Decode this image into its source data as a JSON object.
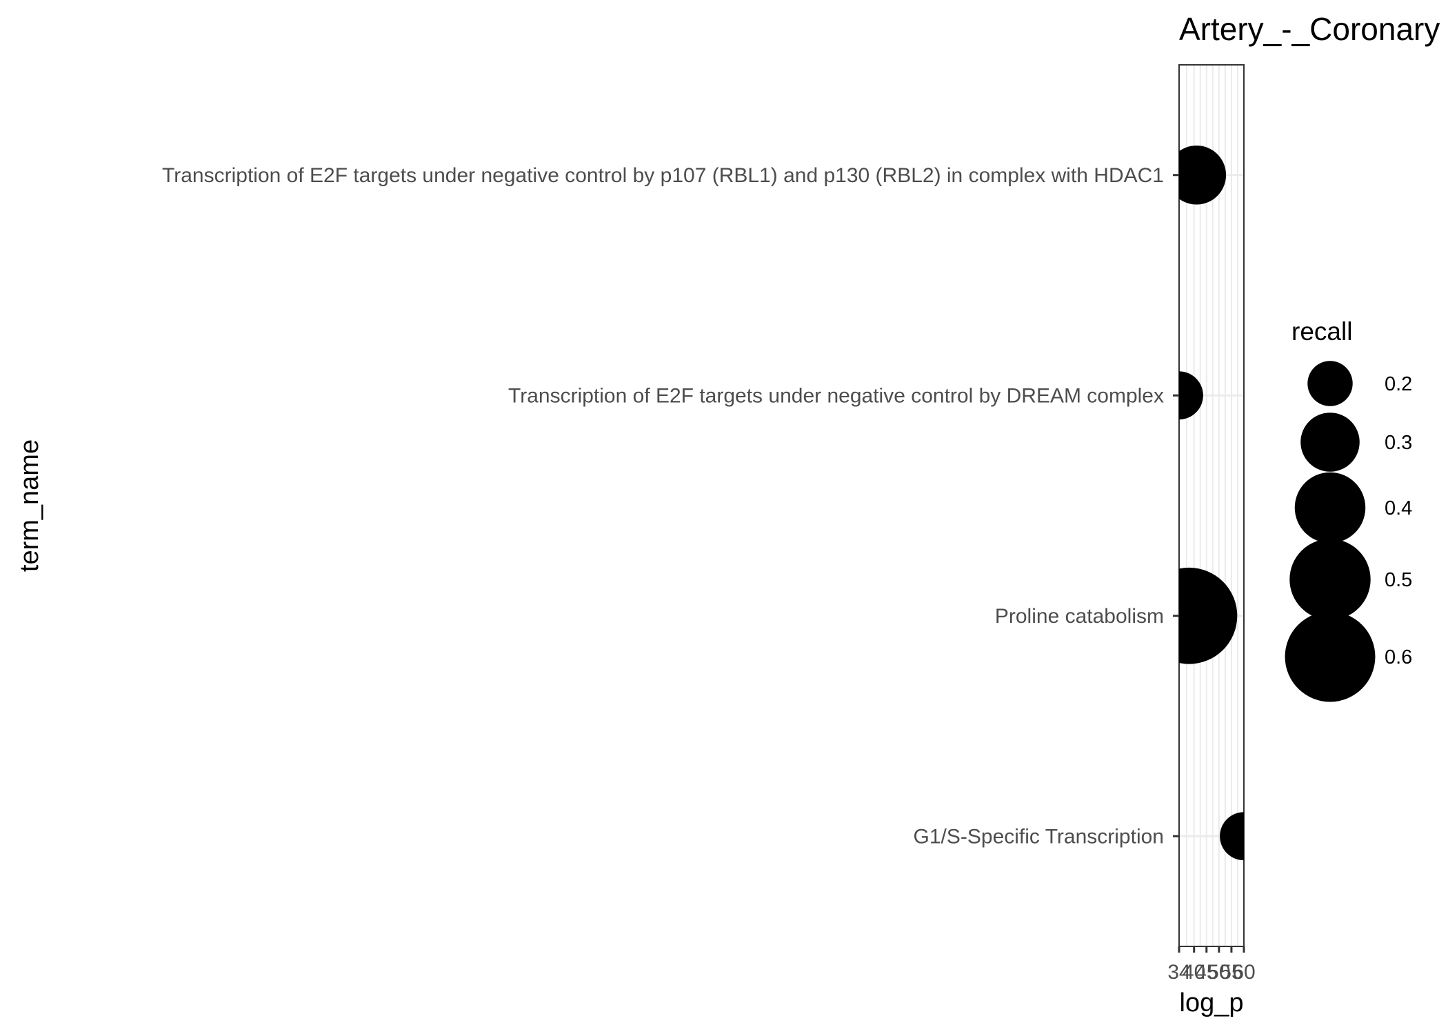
{
  "chart_data": {
    "type": "scatter",
    "title": "Artery_-_Coronary",
    "xlabel": "log_p",
    "ylabel": "term_name",
    "x_ticks": [
      "34",
      "40",
      "45",
      "50",
      "55",
      "60"
    ],
    "x_tick_values": [
      34,
      40,
      45,
      50,
      55,
      60
    ],
    "xlim": [
      34,
      60
    ],
    "categories": [
      "Transcription of E2F targets under negative control by p107 (RBL1) and p130 (RBL2) in complex with HDAC1",
      "Transcription of E2F targets under negative control by DREAM complex",
      "Proline catabolism",
      "G1/S-Specific Transcription"
    ],
    "points": [
      {
        "term_name": "Transcription of E2F targets under negative control by p107 (RBL1) and p130 (RBL2) in complex with HDAC1",
        "log_p": 41,
        "recall": 0.3
      },
      {
        "term_name": "Transcription of E2F targets under negative control by DREAM complex",
        "log_p": 34,
        "recall": 0.22
      },
      {
        "term_name": "Proline catabolism",
        "log_p": 38,
        "recall": 0.67
      },
      {
        "term_name": "G1/S-Specific Transcription",
        "log_p": 60,
        "recall": 0.22
      }
    ],
    "size_legend": {
      "title": "recall",
      "entries": [
        0.2,
        0.3,
        0.4,
        0.5,
        0.6
      ],
      "labels": [
        "0.2",
        "0.3",
        "0.4",
        "0.5",
        "0.6"
      ]
    },
    "point_color": "#000000",
    "grid": true,
    "legend_position": "right"
  }
}
